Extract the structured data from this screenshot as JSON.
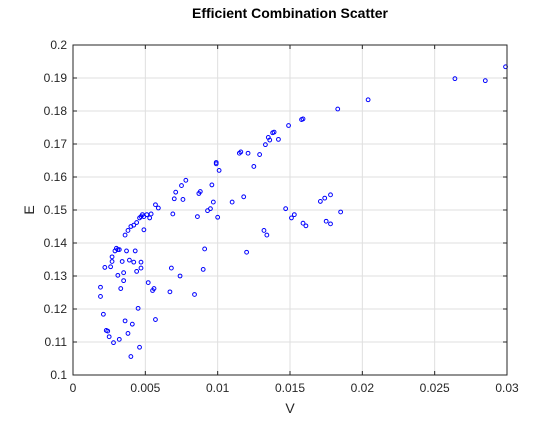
{
  "chart_data": {
    "type": "scatter",
    "title": "Efficient Combination Scatter",
    "xlabel": "V",
    "ylabel": "E",
    "xlim": [
      0,
      0.03
    ],
    "ylim": [
      0.1,
      0.2
    ],
    "xticks": [
      "0",
      "0.005",
      "0.01",
      "0.015",
      "0.02",
      "0.025",
      "0.03"
    ],
    "yticks": [
      "0.1",
      "0.11",
      "0.12",
      "0.13",
      "0.14",
      "0.15",
      "0.16",
      "0.17",
      "0.18",
      "0.19",
      "0.2"
    ],
    "grid": true,
    "marker_color": "#0000ff",
    "series": [
      {
        "points": [
          [
            0.0019,
            0.1266
          ],
          [
            0.0019,
            0.1238
          ],
          [
            0.0021,
            0.1184
          ],
          [
            0.0022,
            0.1326
          ],
          [
            0.0023,
            0.1135
          ],
          [
            0.0024,
            0.1133
          ],
          [
            0.0025,
            0.1116
          ],
          [
            0.0026,
            0.1328
          ],
          [
            0.0027,
            0.1344
          ],
          [
            0.0027,
            0.1358
          ],
          [
            0.0028,
            0.1098
          ],
          [
            0.0029,
            0.1376
          ],
          [
            0.003,
            0.1384
          ],
          [
            0.0031,
            0.138
          ],
          [
            0.0031,
            0.1302
          ],
          [
            0.0032,
            0.138
          ],
          [
            0.0032,
            0.1108
          ],
          [
            0.0033,
            0.1262
          ],
          [
            0.0034,
            0.1344
          ],
          [
            0.0035,
            0.1286
          ],
          [
            0.0035,
            0.131
          ],
          [
            0.0036,
            0.1164
          ],
          [
            0.0036,
            0.1424
          ],
          [
            0.0037,
            0.1376
          ],
          [
            0.0038,
            0.1438
          ],
          [
            0.0038,
            0.1126
          ],
          [
            0.0039,
            0.1348
          ],
          [
            0.004,
            0.145
          ],
          [
            0.004,
            0.1056
          ],
          [
            0.0041,
            0.1154
          ],
          [
            0.0042,
            0.1454
          ],
          [
            0.0042,
            0.1342
          ],
          [
            0.0043,
            0.1376
          ],
          [
            0.0044,
            0.1314
          ],
          [
            0.0044,
            0.1462
          ],
          [
            0.0045,
            0.1202
          ],
          [
            0.0046,
            0.1476
          ],
          [
            0.0046,
            0.1084
          ],
          [
            0.0047,
            0.148
          ],
          [
            0.0047,
            0.1342
          ],
          [
            0.0047,
            0.1324
          ],
          [
            0.0048,
            0.1486
          ],
          [
            0.0049,
            0.148
          ],
          [
            0.0049,
            0.144
          ],
          [
            0.0051,
            0.1486
          ],
          [
            0.0052,
            0.128
          ],
          [
            0.0053,
            0.1476
          ],
          [
            0.0054,
            0.1488
          ],
          [
            0.0055,
            0.1256
          ],
          [
            0.0056,
            0.1262
          ],
          [
            0.0057,
            0.1168
          ],
          [
            0.0057,
            0.1516
          ],
          [
            0.0059,
            0.1506
          ],
          [
            0.0067,
            0.1252
          ],
          [
            0.0068,
            0.1324
          ],
          [
            0.0069,
            0.1488
          ],
          [
            0.007,
            0.1534
          ],
          [
            0.0071,
            0.1554
          ],
          [
            0.0074,
            0.13
          ],
          [
            0.0075,
            0.1574
          ],
          [
            0.0076,
            0.1532
          ],
          [
            0.0078,
            0.159
          ],
          [
            0.0084,
            0.1244
          ],
          [
            0.0086,
            0.148
          ],
          [
            0.0087,
            0.155
          ],
          [
            0.0088,
            0.1556
          ],
          [
            0.009,
            0.132
          ],
          [
            0.0091,
            0.1382
          ],
          [
            0.0093,
            0.1498
          ],
          [
            0.0095,
            0.1504
          ],
          [
            0.0096,
            0.1576
          ],
          [
            0.0097,
            0.1524
          ],
          [
            0.0099,
            0.164
          ],
          [
            0.0099,
            0.1644
          ],
          [
            0.01,
            0.1478
          ],
          [
            0.0101,
            0.162
          ],
          [
            0.011,
            0.1524
          ],
          [
            0.0115,
            0.1672
          ],
          [
            0.0116,
            0.1676
          ],
          [
            0.0118,
            0.154
          ],
          [
            0.012,
            0.1372
          ],
          [
            0.0121,
            0.1672
          ],
          [
            0.0125,
            0.1632
          ],
          [
            0.0129,
            0.1668
          ],
          [
            0.0132,
            0.1438
          ],
          [
            0.0133,
            0.1698
          ],
          [
            0.0134,
            0.1424
          ],
          [
            0.0135,
            0.172
          ],
          [
            0.0136,
            0.1712
          ],
          [
            0.0138,
            0.1734
          ],
          [
            0.0139,
            0.1736
          ],
          [
            0.0142,
            0.1714
          ],
          [
            0.0147,
            0.1504
          ],
          [
            0.0149,
            0.1756
          ],
          [
            0.0151,
            0.1476
          ],
          [
            0.0153,
            0.1486
          ],
          [
            0.0158,
            0.1774
          ],
          [
            0.0159,
            0.1776
          ],
          [
            0.0159,
            0.146
          ],
          [
            0.0161,
            0.1452
          ],
          [
            0.0171,
            0.1526
          ],
          [
            0.0174,
            0.1536
          ],
          [
            0.0175,
            0.1466
          ],
          [
            0.0178,
            0.1546
          ],
          [
            0.0178,
            0.1458
          ],
          [
            0.0183,
            0.1806
          ],
          [
            0.0185,
            0.1494
          ],
          [
            0.0204,
            0.1834
          ],
          [
            0.0264,
            0.1898
          ],
          [
            0.0285,
            0.1892
          ],
          [
            0.0299,
            0.1934
          ]
        ]
      }
    ]
  }
}
